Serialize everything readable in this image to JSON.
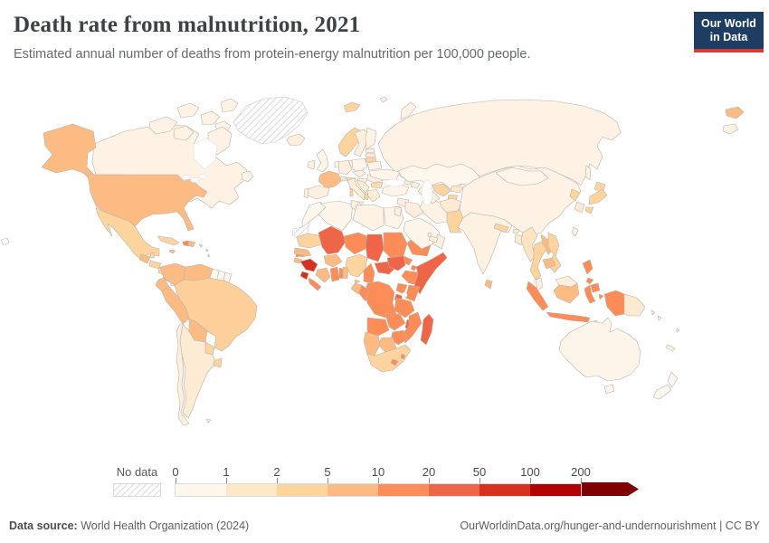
{
  "header": {
    "title": "Death rate from malnutrition, 2021",
    "subtitle": "Estimated annual number of deaths from protein-energy malnutrition per 100,000 people.",
    "logo_line1": "Our World",
    "logo_line2": "in Data"
  },
  "colors": {
    "brand_navy": "#1d3d63",
    "brand_red": "#d63c34",
    "border_gray": "#b9b3ab"
  },
  "legend": {
    "no_data_label": "No data",
    "ticks": [
      "0",
      "1",
      "2",
      "5",
      "10",
      "20",
      "50",
      "100",
      "200"
    ],
    "colors": [
      "#fff7ec",
      "#fee8c8",
      "#fdd49e",
      "#fdbb84",
      "#fc8d59",
      "#ef6548",
      "#d7301f",
      "#b30000",
      "#7f0000"
    ]
  },
  "chart_data": {
    "type": "choropleth",
    "title": "Death rate from malnutrition, 2021",
    "subtitle": "Estimated annual number of deaths from protein-energy malnutrition per 100,000 people.",
    "unit": "deaths per 100,000 people",
    "year": "2021",
    "scale_thresholds": [
      0,
      1,
      2,
      5,
      10,
      20,
      50,
      100,
      200
    ],
    "scale_bands": [
      "0-1",
      "1-2",
      "2-5",
      "5-10",
      "10-20",
      "20-50",
      "50-100",
      "100-200",
      "200+"
    ],
    "band_colors": [
      "#fff7ec",
      "#fee8c8",
      "#fdd49e",
      "#fdbb84",
      "#fc8d59",
      "#ef6548",
      "#d7301f",
      "b30000",
      "#7f0000"
    ],
    "no_data": [
      "Greenland",
      "Western Sahara"
    ],
    "highest_band_shown": "50-100 (Guinea, Sierra Leone)",
    "notable_readings": {
      "Guinea": "50-100",
      "Sierra Leone": "50-100",
      "Mali": "20-50",
      "Chad": "20-50",
      "South Sudan": "20-50",
      "Somalia": "20-50",
      "Central African Republic": "20-50",
      "Madagascar": "20-50",
      "Malawi": "20-50",
      "United States": "5-10",
      "France": "5-10",
      "Mexico": "2-5",
      "Brazil": "2-5",
      "Canada": "0-1",
      "Russia": "0-1",
      "China": "0-1",
      "India": "0-1",
      "Australia": "0-1"
    }
  },
  "map": {
    "countries": {
      "russia": "#fdf2e3",
      "canadian-arctic": "#fdf2e3",
      "canada": "#fdf2e3",
      "greenland": "no-data",
      "iceland": "#fdeedd",
      "usa": "#fdbb84",
      "mexico": "#fdd49e",
      "guatemala": "#fdbb84",
      "belize": "#fdd49e",
      "honduras": "#fdd49e",
      "nicaragua": "#fdd49e",
      "costa-rica": "#fee8c8",
      "panama": "#fee8c8",
      "cuba": "#fdd49e",
      "jamaica": "#fdbb84",
      "haiti": "#fc8d59",
      "dominican-republic": "#fdbb84",
      "puerto-rico": "#fdd49e",
      "lesser-antilles": "#fdd49e",
      "colombia": "#fdbb84",
      "venezuela": "#fdbb84",
      "guyana": "#fef7ee",
      "suriname": "#fef7ee",
      "french-guiana": "#fef7ee",
      "ecuador": "#fdbb84",
      "peru": "#fdbb84",
      "brazil": "#fdcf9b",
      "bolivia": "#fdbb84",
      "paraguay": "#fdd49e",
      "uruguay": "#fdd49e",
      "argentina": "#fdebd3",
      "chile": "#fdeedd",
      "falklands": "#fef7ee",
      "svalbard": "#fdd49e",
      "novaya-zemlya": "#fdf2e3",
      "franz-josef": "#fdf2e3",
      "sakhalin": "#fdf2e3",
      "wrangel": "#fdf2e3",
      "bering-usa": "#fdbb84",
      "norway": "#fdd49e",
      "sweden": "#fdeedd",
      "finland": "#fdf2e3",
      "denmark": "#fdeedd",
      "uk": "#fef5ea",
      "ireland": "#fdeedd",
      "netherlands": "#fef7ee",
      "germany": "#fdeedd",
      "poland": "#fef5ea",
      "czechia": "#fdf0e0",
      "switzerland": "#fee8c8",
      "austria": "#fdd9ab",
      "hungary": "#fdeedd",
      "france": "#fdbb84",
      "spain": "#fdf0e0",
      "portugal": "#fdeedd",
      "italy": "#fdecd6",
      "sardinia": "#fdd49e",
      "balkans": "#fdecd6",
      "albania": "#fdd49e",
      "romania": "#fdeedd",
      "bulgaria": "#fdd9ab",
      "greece": "#fdecd6",
      "estonia": "#fdf0e0",
      "latvia": "#fdead0",
      "lithuania": "#fdd49e",
      "belarus": "#fef5ea",
      "ukraine": "#fef5ea",
      "morocco": "#fef7ee",
      "western-sahara": "no-data",
      "algeria": "#fef5ea",
      "tunisia": "#fdeedd",
      "libya": "#fdf2e3",
      "egypt": "#fef5ea",
      "mauritania": "#fdd49e",
      "mali": "#ef6548",
      "senegal": "#fdbb84",
      "gambia": "#fc8d59",
      "guinea-bissau": "#fdbb84",
      "guinea": "#d7301f",
      "sierra-leone": "#d7301f",
      "liberia": "#fc8d59",
      "ivory-coast": "#fdbb84",
      "burkina-faso": "#fdbb84",
      "ghana": "#fc8d59",
      "togo": "#fc8d59",
      "benin": "#fdbb84",
      "niger": "#fc8d59",
      "nigeria": "#fdd49e",
      "chad": "#ef6548",
      "sudan": "#fc8d59",
      "eritrea": "#fc8d59",
      "djibouti": "#fc8d59",
      "south-sudan": "#ef6548",
      "central-african-republic": "#ef6548",
      "cameroon": "#fc8d59",
      "ethiopia": "#fc8d59",
      "somalia": "#ef6548",
      "kenya": "#fc8d59",
      "uganda": "#fc8d59",
      "rwanda-burundi": "#ef6548",
      "gabon": "#fdbb84",
      "equatorial-guinea": "#fdbb84",
      "congo": "#fc8d59",
      "drc": "#fc8d59",
      "tanzania": "#fc8d59",
      "malawi": "#ef6548",
      "angola": "#fc8d59",
      "zambia": "#fc8d59",
      "mozambique": "#fc8d59",
      "zimbabwe": "#fc8d59",
      "botswana": "#fdbb84",
      "namibia": "#fdbb84",
      "south-africa": "#fdd49e",
      "lesotho": "#fc8d59",
      "eswatini": "#fc8d59",
      "madagascar": "#ef6548",
      "turkey": "#fef5ea",
      "georgia": "#fdeedd",
      "azerbaijan": "#fdeedd",
      "syria": "#fdeedd",
      "iraq": "#fdeedd",
      "iran": "#fdf2e3",
      "jordan": "#fdeedd",
      "saudi-arabia": "#fef5ea",
      "yemen": "#fc8d59",
      "oman": "#fdeedd",
      "uae": "#fdeedd",
      "qatar": "#fdeedd",
      "kazakhstan": "#fef7ee",
      "uzbekistan": "#fdd49e",
      "turkmenistan": "#fdeedd",
      "kyrgyzstan": "#fee8c8",
      "tajikistan": "#fdd49e",
      "afghanistan": "#fdead0",
      "pakistan": "#fdd49e",
      "india": "#fdf1e1",
      "nepal": "#fdd49e",
      "bhutan": "#fee8c8",
      "bangladesh": "#fdead0",
      "sri-lanka": "#fdbb84",
      "china": "#fdf2e3",
      "mongolia": "#fdf5ea",
      "north-korea": "#fdd49e",
      "south-korea": "#fdead0",
      "japan": "#fdd49e",
      "taiwan": "#fdf0e0",
      "myanmar": "#fde4c2",
      "thailand": "#fdd49e",
      "laos": "#fdbb84",
      "vietnam": "#fdd49e",
      "cambodia": "#fdbb84",
      "malaysia": "#fdeedd",
      "philippines": "#fc8d59",
      "indonesia": "#fc8d59",
      "kalimantan": "#fdbb84",
      "timor": "#fee8c8",
      "papua-new-guinea": "#fdead0",
      "australia": "#fdf5ea",
      "new-zealand": "#fef7ee",
      "new-caledonia": "#fdf2e3",
      "solomon-islands": "#fdf2e3",
      "fiji": "#fdf2e3"
    }
  },
  "footer": {
    "source_label": "Data source:",
    "source_text": " World Health Organization (2024)",
    "right_text": "OurWorldinData.org/hunger-and-undernourishment | CC BY"
  }
}
